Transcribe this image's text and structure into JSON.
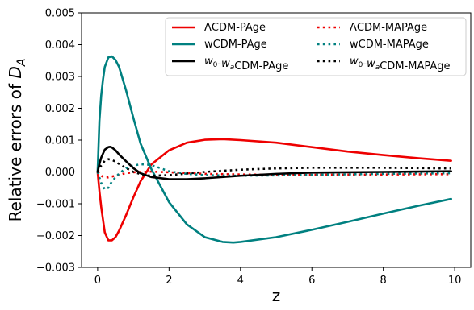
{
  "chart_data": {
    "type": "line",
    "xlabel": "z",
    "ylabel": "Relative errors of D_A",
    "ylabel_parts": {
      "main": "Relative errors of ",
      "symbol": "D",
      "subscript": "A"
    },
    "xlim": [
      -0.45,
      10.45
    ],
    "ylim": [
      -0.003,
      0.005
    ],
    "x_ticks": [
      0,
      2,
      4,
      6,
      8,
      10
    ],
    "x_tick_labels": [
      "0",
      "2",
      "4",
      "6",
      "8",
      "10"
    ],
    "y_ticks": [
      -0.003,
      -0.002,
      -0.001,
      0.0,
      0.001,
      0.002,
      0.003,
      0.004,
      0.005
    ],
    "y_tick_labels": [
      "−0.003",
      "−0.002",
      "−0.001",
      "0.000",
      "0.001",
      "0.002",
      "0.003",
      "0.004",
      "0.005"
    ],
    "grid": false,
    "legend_position": "upper right",
    "legend_columns": 2,
    "series": [
      {
        "name": "ΛCDM-PAge",
        "label_parts": [
          {
            "t": "ΛCDM-PAge"
          }
        ],
        "color": "#ee0000",
        "style": "solid",
        "x": [
          0,
          0.05,
          0.1,
          0.15,
          0.2,
          0.3,
          0.4,
          0.5,
          0.6,
          0.8,
          1.0,
          1.2,
          1.5,
          2.0,
          2.5,
          3.0,
          3.5,
          4.0,
          5.0,
          6.0,
          7.0,
          8.0,
          9.0,
          9.9
        ],
        "y": [
          0,
          -0.0006,
          -0.0011,
          -0.0015,
          -0.0019,
          -0.00215,
          -0.00215,
          -0.00205,
          -0.00185,
          -0.00135,
          -0.0008,
          -0.0003,
          0.00023,
          0.00068,
          0.00092,
          0.00101,
          0.00103,
          0.001,
          0.00092,
          0.00078,
          0.00064,
          0.00053,
          0.00043,
          0.00035
        ]
      },
      {
        "name": "ΛCDM-MAPAge",
        "label_parts": [
          {
            "t": "ΛCDM-MAPAge"
          }
        ],
        "color": "#ee0000",
        "style": "dotted",
        "x": [
          0,
          0.1,
          0.2,
          0.3,
          0.5,
          0.7,
          1.0,
          1.5,
          2.0,
          3.0,
          4.0,
          5.0,
          6.0,
          8.0,
          9.9
        ],
        "y": [
          0,
          -0.00012,
          -0.00018,
          -0.00017,
          -0.00012,
          -6e-05,
          -1e-05,
          1e-05,
          -1e-05,
          -6e-05,
          -8e-05,
          -9e-05,
          -9e-05,
          -8e-05,
          -7e-05
        ]
      },
      {
        "name": "wCDM-PAge",
        "label_parts": [
          {
            "t": "wCDM-PAge"
          }
        ],
        "color": "#008080",
        "style": "solid",
        "x": [
          0,
          0.05,
          0.1,
          0.15,
          0.2,
          0.3,
          0.4,
          0.5,
          0.6,
          0.8,
          1.0,
          1.2,
          1.5,
          2.0,
          2.5,
          3.0,
          3.5,
          3.8,
          4.0,
          5.0,
          6.0,
          7.0,
          8.0,
          9.0,
          9.9
        ],
        "y": [
          0,
          0.0016,
          0.0024,
          0.0029,
          0.0033,
          0.0036,
          0.00363,
          0.00352,
          0.0033,
          0.00255,
          0.0017,
          0.0009,
          0.0001,
          -0.00095,
          -0.00165,
          -0.00205,
          -0.0022,
          -0.00222,
          -0.0022,
          -0.00205,
          -0.00182,
          -0.00157,
          -0.00131,
          -0.00106,
          -0.00085
        ]
      },
      {
        "name": "wCDM-MAPAge",
        "label_parts": [
          {
            "t": "wCDM-MAPAge"
          }
        ],
        "color": "#008080",
        "style": "dotted",
        "x": [
          0,
          0.1,
          0.2,
          0.3,
          0.4,
          0.6,
          0.8,
          1.0,
          1.2,
          1.4,
          1.6,
          1.8,
          2.0,
          2.5,
          3.0,
          4.0,
          5.0,
          6.0,
          8.0,
          9.9
        ],
        "y": [
          0,
          -0.00035,
          -0.00055,
          -0.0005,
          -0.0003,
          -5e-05,
          0.00012,
          0.0002,
          0.00024,
          0.00023,
          0.00018,
          0.0001,
          2e-05,
          -6e-05,
          -0.0001,
          -0.00012,
          -0.00011,
          -9e-05,
          -6e-05,
          -4e-05
        ]
      },
      {
        "name": "w0-wa CDM-PAge",
        "label_parts": [
          {
            "t": "w",
            "i": true
          },
          {
            "t": "0",
            "sub": true
          },
          {
            "t": "-"
          },
          {
            "t": "w",
            "i": true
          },
          {
            "t": "a",
            "sub": true,
            "i": true
          },
          {
            "t": "CDM-PAge"
          }
        ],
        "color": "#000000",
        "style": "solid",
        "x": [
          0,
          0.05,
          0.1,
          0.2,
          0.3,
          0.35,
          0.4,
          0.5,
          0.6,
          0.8,
          1.0,
          1.2,
          1.5,
          2.0,
          2.5,
          3.0,
          4.0,
          5.0,
          6.0,
          8.0,
          9.9
        ],
        "y": [
          0,
          0.00025,
          0.00045,
          0.0007,
          0.00078,
          0.00079,
          0.00077,
          0.00068,
          0.00055,
          0.00033,
          0.00012,
          -4e-05,
          -0.00016,
          -0.00023,
          -0.00023,
          -0.0002,
          -0.00012,
          -6e-05,
          -2e-05,
          0.0,
          2e-05
        ]
      },
      {
        "name": "w0-wa CDM-MAPAge",
        "label_parts": [
          {
            "t": "w",
            "i": true
          },
          {
            "t": "0",
            "sub": true
          },
          {
            "t": "-"
          },
          {
            "t": "w",
            "i": true
          },
          {
            "t": "a",
            "sub": true,
            "i": true
          },
          {
            "t": "CDM-MAPAge"
          }
        ],
        "color": "#000000",
        "style": "dotted",
        "x": [
          0,
          0.1,
          0.2,
          0.3,
          0.4,
          0.5,
          0.7,
          1.0,
          1.3,
          1.5,
          2.0,
          2.5,
          3.0,
          4.0,
          5.0,
          6.0,
          8.0,
          9.9
        ],
        "y": [
          0,
          0.0002,
          0.00035,
          0.0004,
          0.00038,
          0.00032,
          0.00018,
          0.0,
          -0.0001,
          -0.00012,
          -0.0001,
          -5e-05,
          0.0,
          7e-05,
          0.00011,
          0.00013,
          0.00013,
          0.00011
        ]
      }
    ]
  }
}
